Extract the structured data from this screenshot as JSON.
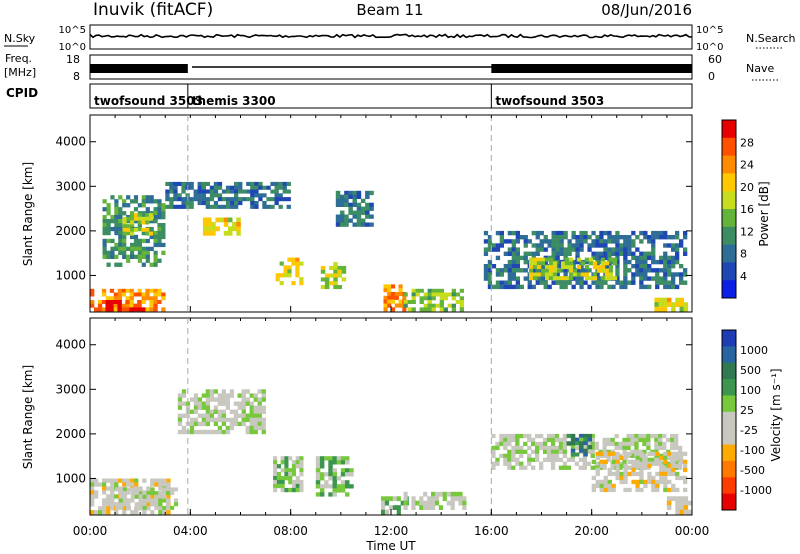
{
  "header": {
    "station": "Inuvik (fitACF)",
    "beam": "Beam 11",
    "date": "08/Jun/2016"
  },
  "strips": {
    "nsky_label": "N.Sky",
    "nsearch_label": "N.Search",
    "nsky_ticks": [
      "10^5",
      "10^0"
    ],
    "nsearch_ticks": [
      "10^5",
      "10^0"
    ],
    "freq_label_1": "Freq.",
    "freq_label_2": "[MHz]",
    "freq_ticks": [
      "18",
      "8"
    ],
    "nave_label": "Nave",
    "nave_ticks": [
      "60",
      "0"
    ],
    "cpid_label": "CPID"
  },
  "cpid_segments": [
    {
      "label": "twofsound 3503",
      "start": 0,
      "end": 3.9
    },
    {
      "label": "themis 3300",
      "start": 3.9,
      "end": 16.0
    },
    {
      "label": "twofsound 3503",
      "start": 16.0,
      "end": 24.0
    }
  ],
  "panels": {
    "power": {
      "ylabel": "Slant Range [km]",
      "yticks": [
        "4000",
        "3000",
        "2000",
        "1000"
      ],
      "scale_label": "Power [dB]",
      "scale_ticks": [
        "28",
        "24",
        "20",
        "16",
        "12",
        "8",
        "4"
      ],
      "colors": [
        "#0a1ee6",
        "#1e46b4",
        "#2e6e96",
        "#3c8c64",
        "#64b43c",
        "#c8dc1e",
        "#ffc800",
        "#ff8c00",
        "#ff5000",
        "#e60000"
      ]
    },
    "velocity": {
      "ylabel": "Slant Range [km]",
      "yticks": [
        "4000",
        "3000",
        "2000",
        "1000"
      ],
      "scale_label": "Velocity [m s⁻¹]",
      "scale_ticks": [
        "1000",
        "500",
        "100",
        "25",
        "-25",
        "-100",
        "-500",
        "-1000"
      ],
      "colors": [
        "#1e3cb4",
        "#2864a0",
        "#327850",
        "#3c9650",
        "#78c83c",
        "#c8c8c0",
        "#c8c8c0",
        "#ffaa00",
        "#ff7800",
        "#ff3c00",
        "#e60000"
      ]
    }
  },
  "xaxis": {
    "label": "Time UT",
    "ticks": [
      "00:00",
      "04:00",
      "08:00",
      "12:00",
      "16:00",
      "20:00",
      "00:00"
    ]
  },
  "chart_data": {
    "type": "heatmap",
    "title": "Inuvik (fitACF) Beam 11 08/Jun/2016",
    "xlabel": "Time UT",
    "ylabel": "Slant Range [km]",
    "xlim_hours": [
      0,
      24
    ],
    "ylim": [
      180,
      4600
    ],
    "power_range_db": [
      0,
      30
    ],
    "velocity_range": [
      -1250,
      1250
    ],
    "power_patches": [
      {
        "t0": 0.0,
        "t1": 3.0,
        "r0": 200,
        "r1": 700,
        "v": 22
      },
      {
        "t0": 0.3,
        "t1": 2.2,
        "r0": 200,
        "r1": 450,
        "v": 28
      },
      {
        "t0": 0.5,
        "t1": 3.0,
        "r0": 1200,
        "r1": 2800,
        "v": 10
      },
      {
        "t0": 1.3,
        "t1": 2.5,
        "r0": 1900,
        "r1": 2400,
        "v": 16
      },
      {
        "t0": 4.5,
        "t1": 6.0,
        "r0": 1900,
        "r1": 2300,
        "v": 18
      },
      {
        "t0": 3.0,
        "t1": 8.0,
        "r0": 2500,
        "r1": 3100,
        "v": 8
      },
      {
        "t0": 7.4,
        "t1": 8.5,
        "r0": 700,
        "r1": 1400,
        "v": 18
      },
      {
        "t0": 9.2,
        "t1": 10.2,
        "r0": 700,
        "r1": 1300,
        "v": 16
      },
      {
        "t0": 9.8,
        "t1": 11.3,
        "r0": 2100,
        "r1": 2900,
        "v": 8
      },
      {
        "t0": 11.7,
        "t1": 12.6,
        "r0": 200,
        "r1": 800,
        "v": 22
      },
      {
        "t0": 12.5,
        "t1": 14.9,
        "r0": 200,
        "r1": 700,
        "v": 14
      },
      {
        "t0": 15.7,
        "t1": 23.8,
        "r0": 700,
        "r1": 2000,
        "v": 8
      },
      {
        "t0": 17.5,
        "t1": 21.0,
        "r0": 900,
        "r1": 1400,
        "v": 16
      },
      {
        "t0": 22.5,
        "t1": 24.0,
        "r0": 200,
        "r1": 500,
        "v": 18
      }
    ],
    "velocity_patches": [
      {
        "t0": 0.0,
        "t1": 3.2,
        "r0": 200,
        "r1": 1000,
        "v": -150
      },
      {
        "t0": 1.0,
        "t1": 3.5,
        "r0": 300,
        "r1": 800,
        "v": 0
      },
      {
        "t0": 3.5,
        "t1": 7.0,
        "r0": 2000,
        "r1": 3000,
        "v": 0
      },
      {
        "t0": 7.3,
        "t1": 8.5,
        "r0": 700,
        "r1": 1500,
        "v": 200
      },
      {
        "t0": 9.0,
        "t1": 10.5,
        "r0": 600,
        "r1": 1500,
        "v": 200
      },
      {
        "t0": 11.6,
        "t1": 12.7,
        "r0": 200,
        "r1": 600,
        "v": 200
      },
      {
        "t0": 12.5,
        "t1": 15.0,
        "r0": 300,
        "r1": 700,
        "v": 0
      },
      {
        "t0": 16.0,
        "t1": 23.6,
        "r0": 1200,
        "r1": 2000,
        "v": 0
      },
      {
        "t0": 19.0,
        "t1": 20.0,
        "r0": 1500,
        "r1": 2000,
        "v": 600
      },
      {
        "t0": 20.0,
        "t1": 23.8,
        "r0": 700,
        "r1": 1600,
        "v": -150
      },
      {
        "t0": 23.0,
        "t1": 24.0,
        "r0": 200,
        "r1": 600,
        "v": -150
      }
    ]
  }
}
